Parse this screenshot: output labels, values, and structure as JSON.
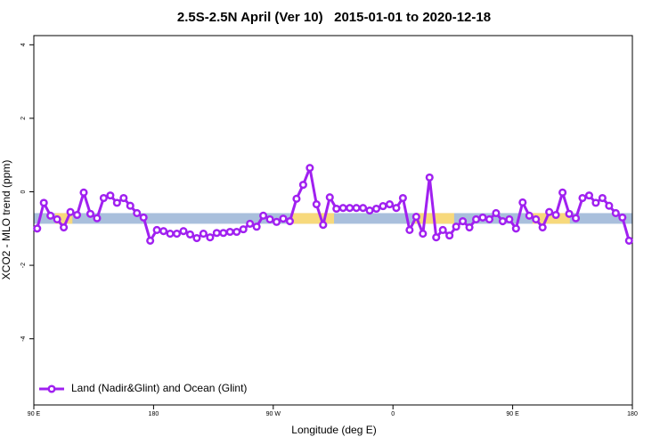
{
  "chart_data": {
    "type": "line",
    "title": "2.5S-2.5N April (Ver 10)   2015-01-01 to 2020-12-18",
    "x_label": "Longitude (deg E)",
    "y_label": "XCO2 - MLO trend (ppm)",
    "xlim": [
      90,
      540
    ],
    "ylim": [
      -5.8,
      4.25
    ],
    "xticks": [
      {
        "value": 90,
        "label": "90 E"
      },
      180,
      {
        "value": 270,
        "label": "90 W"
      },
      {
        "value": 360,
        "label": "0"
      },
      {
        "value": 450,
        "label": "90 E"
      },
      {
        "value": 540,
        "label": "180"
      }
    ],
    "yticks": [
      -4,
      -2,
      0,
      2,
      4
    ],
    "legend": "bottom-left",
    "band": {
      "range": [
        -0.87,
        -0.58
      ],
      "color": "#a9bfdc",
      "highlight_color": "#f7d97c",
      "highlights": [
        [
          106,
          119
        ],
        [
          283.5,
          315.7
        ],
        [
          376.6,
          406
        ],
        [
          465,
          493
        ]
      ]
    },
    "x": [
      92.5,
      97.5,
      102.5,
      107.5,
      112.5,
      117.5,
      122.5,
      127.5,
      132.5,
      137.5,
      142.5,
      147.5,
      152.5,
      157.5,
      162.5,
      167.5,
      172.5,
      177.5,
      182.5,
      187.5,
      192.5,
      197.5,
      202.5,
      207.5,
      212.5,
      217.5,
      222.5,
      227.5,
      232.5,
      237.5,
      242.5,
      247.5,
      252.5,
      257.5,
      262.5,
      267.5,
      272.5,
      277.5,
      282.5,
      287.5,
      292.5,
      297.5,
      302.5,
      307.5,
      312.5,
      317.5,
      322.5,
      327.5,
      332.5,
      337.5,
      342.5,
      347.5,
      352.5,
      357.5,
      362.5,
      367.5,
      372.5,
      377.5,
      382.5,
      387.5,
      392.5,
      397.5,
      402.5,
      407.5,
      412.5,
      417.5,
      422.5,
      427.5,
      432.5,
      437.5,
      442.5,
      447.5,
      452.5,
      457.5,
      462.5,
      467.5,
      472.5,
      477.5,
      482.5,
      487.5,
      492.5,
      497.5,
      502.5,
      507.5,
      512.5,
      517.5,
      522.5,
      527.5,
      532.5,
      537.5
    ],
    "series": [
      {
        "name": "Land (Nadir&Glint) and Ocean (Glint)",
        "color": "#a020f0",
        "values": [
          -1.0,
          -0.3,
          -0.65,
          -0.75,
          -0.97,
          -0.55,
          -0.63,
          -0.02,
          -0.6,
          -0.72,
          -0.17,
          -0.1,
          -0.3,
          -0.17,
          -0.38,
          -0.58,
          -0.7,
          -1.33,
          -1.04,
          -1.07,
          -1.14,
          -1.14,
          -1.07,
          -1.16,
          -1.26,
          -1.14,
          -1.24,
          -1.12,
          -1.12,
          -1.09,
          -1.09,
          -1.02,
          -0.87,
          -0.95,
          -0.65,
          -0.75,
          -0.82,
          -0.73,
          -0.8,
          -0.19,
          0.19,
          0.65,
          -0.34,
          -0.9,
          -0.15,
          -0.46,
          -0.44,
          -0.44,
          -0.44,
          -0.44,
          -0.51,
          -0.46,
          -0.39,
          -0.34,
          -0.44,
          -0.17,
          -1.04,
          -0.68,
          -1.14,
          0.39,
          -1.24,
          -1.04,
          -1.19,
          -0.95,
          -0.8,
          -0.97,
          -0.75,
          -0.7,
          -0.75,
          -0.58,
          -0.8,
          -0.75,
          -1.0,
          -0.29,
          -0.65,
          -0.75,
          -0.97,
          -0.55,
          -0.63,
          -0.02,
          -0.6,
          -0.72,
          -0.17,
          -0.1,
          -0.3,
          -0.17,
          -0.38,
          -0.58,
          -0.7,
          -1.33
        ]
      }
    ]
  }
}
